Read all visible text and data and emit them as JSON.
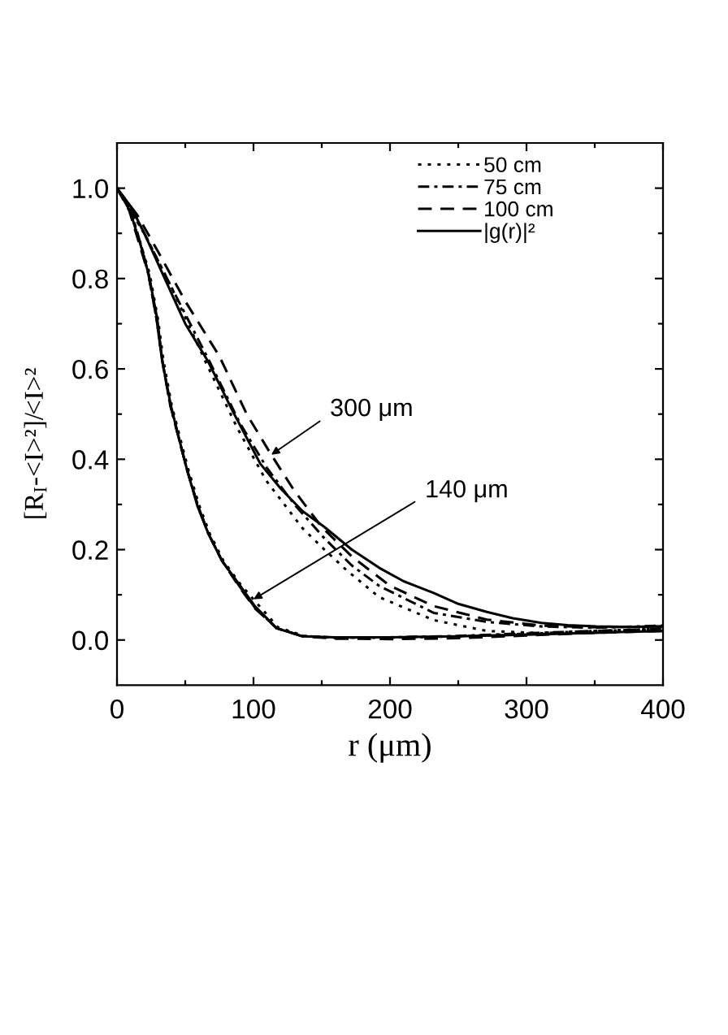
{
  "chart_data": {
    "type": "line",
    "xlabel": "r (μm)",
    "ylabel": "[R$_{I}$-<I>²]/<I>²",
    "xlim": [
      0,
      400
    ],
    "xticks": [
      0,
      {
        "value": 50,
        "label": null
      },
      100,
      {
        "value": 150,
        "label": null
      },
      200,
      {
        "value": 250,
        "label": null
      },
      300,
      {
        "value": 350,
        "label": null
      },
      400
    ],
    "ylim": [
      -0.1,
      1.1
    ],
    "yticks": [
      {
        "value": 0,
        "label": "0.0"
      },
      {
        "value": 0.1,
        "label": null
      },
      0.2,
      {
        "value": 0.3,
        "label": null
      },
      0.4,
      {
        "value": 0.5,
        "label": null
      },
      0.6,
      {
        "value": 0.7,
        "label": null
      },
      0.8,
      {
        "value": 0.9,
        "label": null
      },
      {
        "value": 1,
        "label": "1.0"
      }
    ],
    "legend": "top right",
    "annotations": [
      {
        "text": "300 μm",
        "x": 113,
        "y": 0.41
      },
      {
        "text": "140 μm",
        "x": 100,
        "y": 0.09
      }
    ],
    "series": [
      {
        "name": "50 cm",
        "color": "#000000",
        "line_style": "dotted",
        "x": [
          0,
          20,
          40,
          65,
          88,
          109,
          136,
          152,
          168,
          192,
          232,
          271,
          311,
          351,
          400
        ],
        "values": [
          1.0,
          0.9,
          0.78,
          0.615,
          0.47,
          0.354,
          0.247,
          0.2,
          0.155,
          0.095,
          0.044,
          0.02,
          0.015,
          0.02,
          0.025
        ]
      },
      {
        "name": "75 cm",
        "color": "#000000",
        "line_style": "dashdot",
        "x": [
          0,
          20,
          40,
          68,
          90,
          110,
          130,
          152,
          172,
          192,
          232,
          271,
          311,
          351,
          400
        ],
        "values": [
          1.0,
          0.9,
          0.78,
          0.615,
          0.48,
          0.38,
          0.3,
          0.225,
          0.165,
          0.12,
          0.06,
          0.04,
          0.03,
          0.027,
          0.032
        ]
      },
      {
        "name": "100 cm",
        "color": "#000000",
        "line_style": "dashed",
        "x": [
          0,
          15,
          30,
          50,
          75,
          95,
          113,
          130,
          150,
          172,
          200,
          232,
          271,
          311,
          351,
          400
        ],
        "values": [
          1.0,
          0.94,
          0.86,
          0.75,
          0.628,
          0.5,
          0.41,
          0.33,
          0.25,
          0.185,
          0.12,
          0.075,
          0.045,
          0.032,
          0.028,
          0.03
        ]
      },
      {
        "name": "|g(r)|²",
        "color": "#000000",
        "line_style": "solid",
        "x": [
          0,
          10,
          20,
          35,
          50,
          67,
          85,
          105,
          120,
          136,
          152,
          172,
          192,
          210,
          232,
          250,
          271,
          290,
          311,
          330,
          351,
          375,
          400
        ],
        "values": [
          1.0,
          0.96,
          0.9,
          0.8,
          0.7,
          0.615,
          0.505,
          0.39,
          0.335,
          0.285,
          0.25,
          0.2,
          0.16,
          0.13,
          0.104,
          0.08,
          0.062,
          0.048,
          0.038,
          0.033,
          0.03,
          0.029,
          0.03
        ]
      },
      {
        "color": "#000000",
        "line_style": "dotted",
        "x": [
          0,
          10,
          18,
          24,
          30,
          34,
          40,
          46,
          52,
          60,
          68,
          78,
          90,
          100,
          118,
          137,
          160,
          200,
          250,
          300,
          350,
          400
        ],
        "values": [
          1.0,
          0.95,
          0.87,
          0.81,
          0.71,
          0.62,
          0.52,
          0.45,
          0.38,
          0.3,
          0.235,
          0.175,
          0.125,
          0.09,
          0.028,
          0.009,
          0.005,
          0.005,
          0.008,
          0.014,
          0.02,
          0.024
        ]
      },
      {
        "color": "#000000",
        "line_style": "dashdot",
        "x": [
          0,
          10,
          18,
          23,
          29,
          33,
          39,
          45,
          51,
          59,
          67,
          77,
          89,
          101,
          117,
          136,
          160,
          200,
          250,
          300,
          350,
          400
        ],
        "values": [
          1.0,
          0.95,
          0.87,
          0.81,
          0.71,
          0.62,
          0.52,
          0.45,
          0.38,
          0.3,
          0.235,
          0.175,
          0.122,
          0.072,
          0.026,
          0.009,
          0.005,
          0.006,
          0.009,
          0.015,
          0.02,
          0.025
        ]
      },
      {
        "color": "#000000",
        "line_style": "dashed",
        "x": [
          0,
          9,
          17,
          23,
          29,
          33,
          39,
          45,
          51,
          59,
          67,
          77,
          89,
          101,
          117,
          136,
          160,
          200,
          250,
          300,
          350,
          400
        ],
        "values": [
          1.0,
          0.95,
          0.87,
          0.81,
          0.71,
          0.62,
          0.52,
          0.45,
          0.38,
          0.3,
          0.235,
          0.175,
          0.12,
          0.07,
          0.026,
          0.008,
          0.003,
          0.002,
          0.004,
          0.01,
          0.016,
          0.02
        ]
      },
      {
        "color": "#000000",
        "line_style": "solid",
        "x": [
          0,
          9.5,
          17.5,
          23.4,
          29.4,
          33.3,
          39.3,
          45.2,
          51.2,
          59.1,
          67,
          77,
          89,
          101,
          117,
          136,
          160,
          200,
          250,
          300,
          350,
          400
        ],
        "values": [
          1.0,
          0.95,
          0.872,
          0.807,
          0.712,
          0.616,
          0.521,
          0.449,
          0.378,
          0.295,
          0.235,
          0.175,
          0.125,
          0.075,
          0.026,
          0.008,
          0.006,
          0.006,
          0.008,
          0.012,
          0.016,
          0.02
        ]
      }
    ]
  }
}
